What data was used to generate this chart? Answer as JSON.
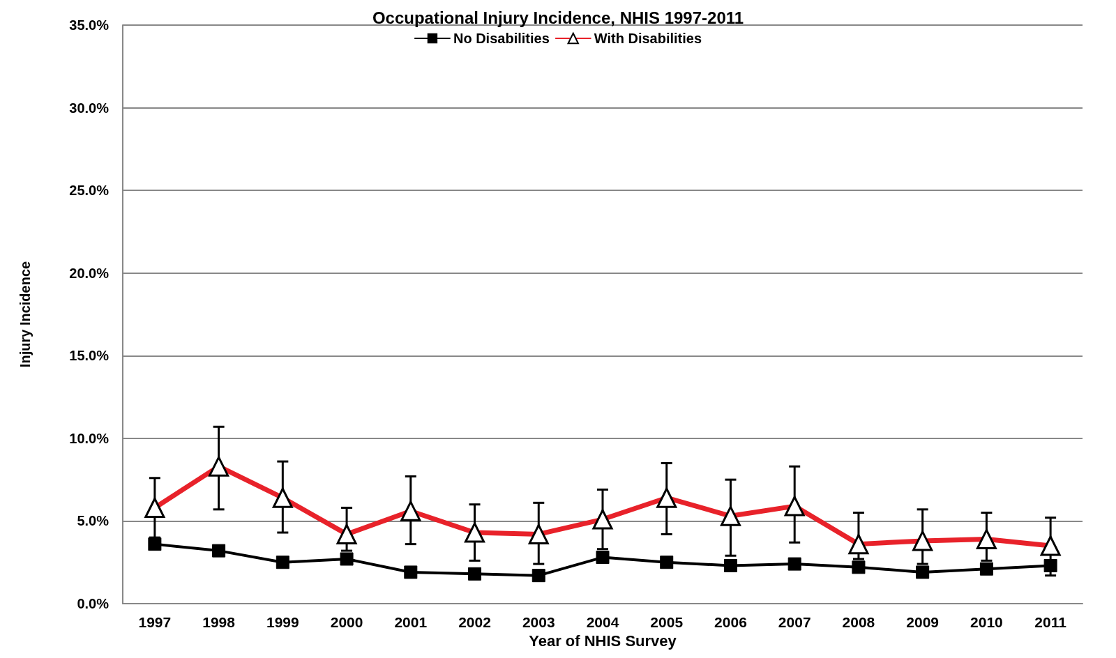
{
  "chart_data": {
    "type": "line",
    "title": "Occupational Injury Incidence, NHIS 1997-2011",
    "xlabel": "Year of NHIS Survey",
    "ylabel": "Injury Incidence",
    "categories": [
      "1997",
      "1998",
      "1999",
      "2000",
      "2001",
      "2002",
      "2003",
      "2004",
      "2005",
      "2006",
      "2007",
      "2008",
      "2009",
      "2010",
      "2011"
    ],
    "series": [
      {
        "name": "No Disabilities",
        "color": "#000000",
        "marker": "square",
        "values": [
          3.6,
          3.2,
          2.5,
          2.7,
          1.9,
          1.8,
          1.7,
          2.8,
          2.5,
          2.3,
          2.4,
          2.2,
          1.9,
          2.1,
          2.3
        ]
      },
      {
        "name": "With Disabilities",
        "color": "#e8222a",
        "marker": "triangle",
        "values": [
          5.8,
          8.3,
          6.4,
          4.2,
          5.6,
          4.3,
          4.2,
          5.1,
          6.4,
          5.3,
          5.9,
          3.6,
          3.8,
          3.9,
          3.5
        ],
        "errors": [
          [
            4.0,
            7.6
          ],
          [
            5.7,
            10.7
          ],
          [
            4.3,
            8.6
          ],
          [
            3.2,
            5.8
          ],
          [
            3.6,
            7.7
          ],
          [
            2.6,
            6.0
          ],
          [
            2.4,
            6.1
          ],
          [
            3.3,
            6.9
          ],
          [
            4.2,
            8.5
          ],
          [
            2.9,
            7.5
          ],
          [
            3.7,
            8.3
          ],
          [
            2.7,
            5.5
          ],
          [
            2.4,
            5.7
          ],
          [
            2.6,
            5.5
          ],
          [
            1.7,
            5.2
          ]
        ]
      }
    ],
    "ylim": [
      0,
      35
    ],
    "yticks": [
      {
        "value": 0,
        "label": "0.0%"
      },
      {
        "value": 5,
        "label": "5.0%"
      },
      {
        "value": 10,
        "label": "10.0%"
      },
      {
        "value": 15,
        "label": "15.0%"
      },
      {
        "value": 20,
        "label": "20.0%"
      },
      {
        "value": 25,
        "label": "25.0%"
      },
      {
        "value": 30,
        "label": "30.0%"
      },
      {
        "value": 35,
        "label": "35.0%"
      }
    ],
    "grid": "y",
    "legend": "top",
    "line_style": "solid"
  }
}
